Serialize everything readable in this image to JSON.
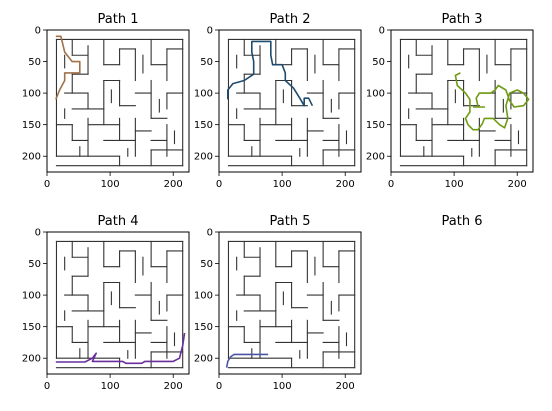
{
  "figure": {
    "layout": "2x3 grid of maze panels",
    "maze_image_extent": [
      0,
      225
    ]
  },
  "chart_data": [
    {
      "type": "line",
      "title": "Path 1",
      "xlim": [
        0,
        225
      ],
      "ylim": [
        225,
        0
      ],
      "xticks": [
        0,
        100,
        200
      ],
      "yticks": [
        0,
        50,
        100,
        150,
        200
      ],
      "series": [
        {
          "color": "#a0724a",
          "x": [
            14,
            20,
            28,
            28,
            38,
            52,
            52,
            40,
            28,
            22,
            14
          ],
          "y": [
            110,
            95,
            80,
            68,
            68,
            68,
            50,
            50,
            35,
            10,
            10
          ]
        }
      ]
    },
    {
      "type": "line",
      "title": "Path 2",
      "xlim": [
        0,
        225
      ],
      "ylim": [
        225,
        0
      ],
      "xticks": [
        0,
        100,
        200
      ],
      "yticks": [
        0,
        50,
        100,
        150,
        200
      ],
      "series": [
        {
          "color": "#1e4b6e",
          "x": [
            14,
            14,
            22,
            40,
            55,
            55,
            52,
            52,
            72,
            82,
            82,
            85,
            100,
            105,
            105,
            118,
            128,
            135,
            135,
            142,
            148
          ],
          "y": [
            110,
            95,
            85,
            80,
            70,
            50,
            35,
            18,
            18,
            18,
            40,
            55,
            55,
            68,
            80,
            92,
            108,
            120,
            108,
            108,
            120
          ]
        }
      ]
    },
    {
      "type": "line",
      "title": "Path 3",
      "xlim": [
        0,
        225
      ],
      "ylim": [
        225,
        0
      ],
      "xticks": [
        0,
        100,
        200
      ],
      "yticks": [
        0,
        50,
        100,
        150,
        200
      ],
      "series": [
        {
          "color": "#6f9b14",
          "x": [
            110,
            102,
            105,
            118,
            125,
            125,
            118,
            122,
            130,
            138,
            145,
            148,
            162,
            172,
            180,
            185,
            182,
            188,
            200,
            210,
            218,
            210,
            195,
            188,
            182,
            170,
            165,
            158,
            148,
            140,
            135,
            138,
            148,
            140,
            130
          ],
          "y": [
            68,
            72,
            88,
            100,
            110,
            130,
            140,
            150,
            158,
            158,
            148,
            140,
            140,
            150,
            155,
            140,
            120,
            100,
            95,
            100,
            110,
            120,
            122,
            112,
            95,
            88,
            95,
            100,
            100,
            100,
            108,
            122,
            122,
            122,
            122
          ]
        }
      ]
    },
    {
      "type": "line",
      "title": "Path 4",
      "xlim": [
        0,
        225
      ],
      "ylim": [
        225,
        0
      ],
      "xticks": [
        0,
        100,
        200
      ],
      "yticks": [
        0,
        50,
        100,
        150,
        200
      ],
      "series": [
        {
          "color": "#6a2f9e",
          "x": [
            14,
            40,
            60,
            72,
            78,
            72,
            90,
            120,
            125,
            150,
            155,
            200,
            210,
            215,
            218
          ],
          "y": [
            206,
            206,
            206,
            200,
            192,
            205,
            205,
            205,
            208,
            208,
            205,
            205,
            200,
            180,
            160
          ]
        }
      ]
    },
    {
      "type": "line",
      "title": "Path 5",
      "xlim": [
        0,
        225
      ],
      "ylim": [
        225,
        0
      ],
      "xticks": [
        0,
        100,
        200
      ],
      "yticks": [
        0,
        50,
        100,
        150,
        200
      ],
      "series": [
        {
          "color": "#4b55a8",
          "x": [
            12,
            14,
            18,
            24,
            40,
            60,
            78
          ],
          "y": [
            215,
            205,
            198,
            194,
            194,
            194,
            194
          ]
        }
      ]
    },
    {
      "type": "line",
      "title": "Path 6",
      "axes": "off",
      "series": []
    }
  ]
}
